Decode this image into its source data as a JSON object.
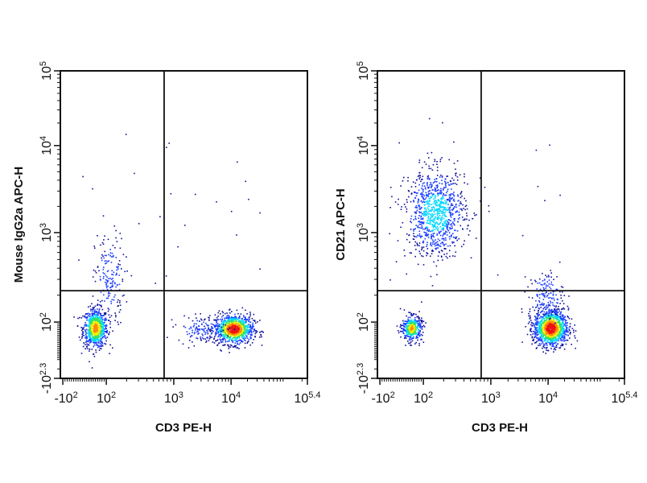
{
  "chart_data": [
    {
      "type": "scatter",
      "subtype": "flow-cytometry-density-dot-plot",
      "xlabel": "CD3 PE-H",
      "ylabel": "Mouse IgG2a APC-H",
      "x_scale": "biexponential",
      "y_scale": "biexponential",
      "xlim": [
        -100,
        251189
      ],
      "ylim": [
        -200,
        100000
      ],
      "x_ticks": [
        {
          "base": "-10",
          "exp": "2"
        },
        {
          "base": "10",
          "exp": "2"
        },
        {
          "base": "10",
          "exp": "3"
        },
        {
          "base": "10",
          "exp": "4"
        },
        {
          "base": "10",
          "exp": "5.4"
        }
      ],
      "y_ticks": [
        {
          "base": "-10",
          "exp": "2.3"
        },
        {
          "base": "10",
          "exp": "2"
        },
        {
          "base": "10",
          "exp": "3"
        },
        {
          "base": "10",
          "exp": "4"
        },
        {
          "base": "10",
          "exp": "5"
        }
      ],
      "quadrant_gate": {
        "x": 720,
        "y": 224
      },
      "populations": [
        {
          "x": 48,
          "y": 70
        },
        {
          "x": 110,
          "y": 300
        },
        {
          "x": 11000,
          "y": 65
        },
        {
          "x": 3000,
          "y": 65
        }
      ],
      "color_scale": [
        "#10109a",
        "#1a3cff",
        "#00d8ff",
        "#30e060",
        "#f0f000",
        "#ff8800",
        "#ee1010"
      ]
    },
    {
      "type": "scatter",
      "subtype": "flow-cytometry-density-dot-plot",
      "xlabel": "CD3 PE-H",
      "ylabel": "CD21 APC-H",
      "x_scale": "biexponential",
      "y_scale": "biexponential",
      "xlim": [
        -100,
        251189
      ],
      "ylim": [
        -200,
        100000
      ],
      "x_ticks": [
        {
          "base": "-10",
          "exp": "2"
        },
        {
          "base": "10",
          "exp": "2"
        },
        {
          "base": "10",
          "exp": "3"
        },
        {
          "base": "10",
          "exp": "4"
        },
        {
          "base": "10",
          "exp": "5.4"
        }
      ],
      "y_ticks": [
        {
          "base": "-10",
          "exp": "2.3"
        },
        {
          "base": "10",
          "exp": "2"
        },
        {
          "base": "10",
          "exp": "3"
        },
        {
          "base": "10",
          "exp": "4"
        },
        {
          "base": "10",
          "exp": "5"
        }
      ],
      "quadrant_gate": {
        "x": 720,
        "y": 224
      },
      "populations": [
        {
          "x": 150,
          "y": 1700
        },
        {
          "x": 45,
          "y": 70
        },
        {
          "x": 11000,
          "y": 70
        },
        {
          "x": 9000,
          "y": 200
        }
      ],
      "color_scale": [
        "#10109a",
        "#1a3cff",
        "#00d8ff",
        "#30e060",
        "#f0f000",
        "#ff8800",
        "#ee1010"
      ]
    }
  ]
}
